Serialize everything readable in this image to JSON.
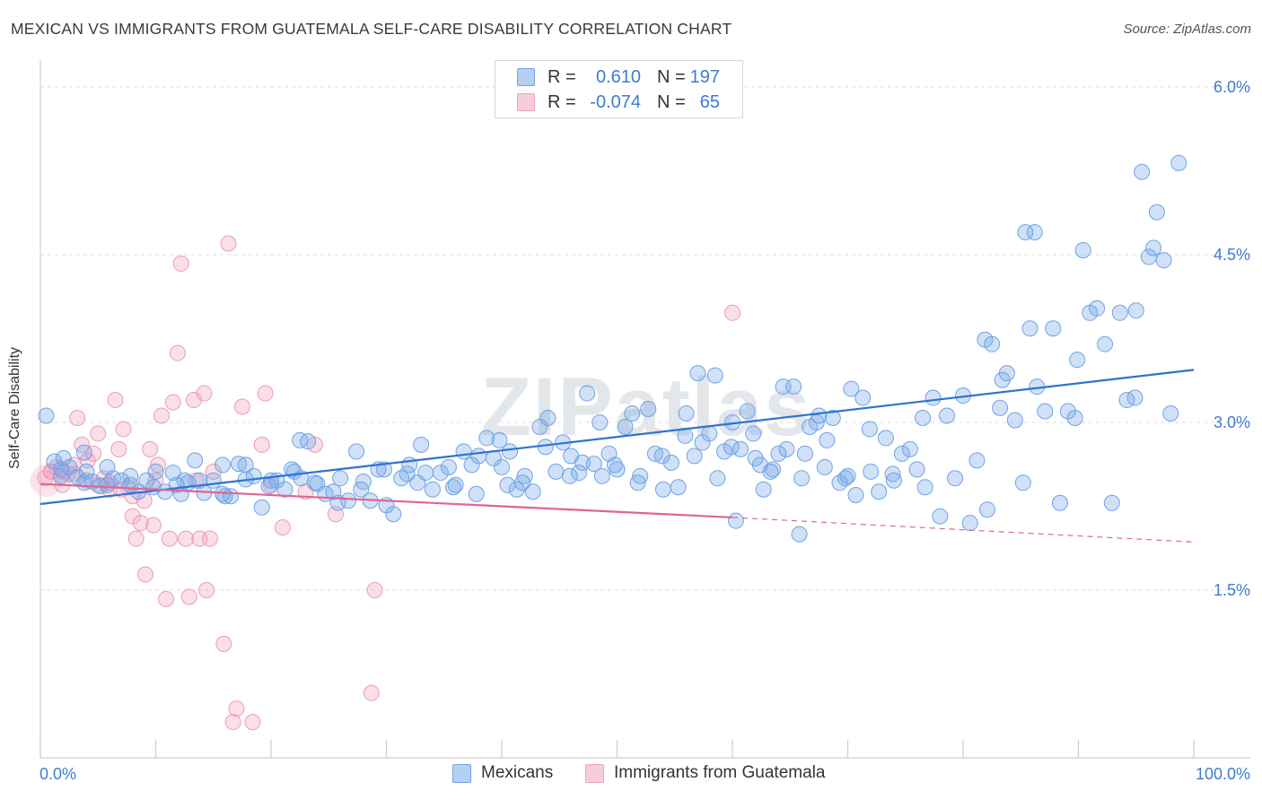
{
  "title": "MEXICAN VS IMMIGRANTS FROM GUATEMALA SELF-CARE DISABILITY CORRELATION CHART",
  "source": "Source: ZipAtlas.com",
  "watermark": "ZIPatlas",
  "legend_top": [
    {
      "r_label": "R =",
      "r_value": "0.610",
      "n_label": "N =",
      "n_value": "197"
    },
    {
      "r_label": "R =",
      "r_value": "-0.074",
      "n_label": "N =",
      "n_value": "65"
    }
  ],
  "bottom_legend": [
    "Mexicans",
    "Immigrants from Guatemala"
  ],
  "colors": {
    "blue": "#6fa3e6",
    "blue_line": "#2f73d1",
    "pink": "#f2a3bc",
    "pink_line": "#e06593",
    "tick_text": "#3d7bd4"
  },
  "chart_data": {
    "type": "scatter",
    "title": "MEXICAN VS IMMIGRANTS FROM GUATEMALA SELF-CARE DISABILITY CORRELATION CHART",
    "xlabel": "",
    "ylabel": "Self-Care Disability",
    "xlim": [
      0,
      100
    ],
    "ylim": [
      0,
      6.2
    ],
    "x_tick_labels": [
      "0.0%",
      "100.0%"
    ],
    "y_ticks": [
      1.5,
      3.0,
      4.5,
      6.0
    ],
    "y_tick_labels": [
      "1.5%",
      "3.0%",
      "4.5%",
      "6.0%"
    ],
    "grid": "horizontal dashed",
    "legend_position": "top-center",
    "series": [
      {
        "name": "Mexicans",
        "color": "#6fa3e6",
        "trend": {
          "x0": 0,
          "y0": 2.27,
          "x1": 100,
          "y1": 3.47
        },
        "points": [
          [
            0.5,
            3.06
          ],
          [
            1.2,
            2.65
          ],
          [
            1.8,
            2.58
          ],
          [
            2.5,
            2.6
          ],
          [
            3.2,
            2.51
          ],
          [
            3.8,
            2.73
          ],
          [
            4.5,
            2.47
          ],
          [
            5.2,
            2.43
          ],
          [
            5.8,
            2.6
          ],
          [
            6.3,
            2.5
          ],
          [
            7.0,
            2.48
          ],
          [
            7.8,
            2.52
          ],
          [
            8.5,
            2.38
          ],
          [
            9.2,
            2.48
          ],
          [
            10.0,
            2.56
          ],
          [
            10.8,
            2.38
          ],
          [
            11.5,
            2.55
          ],
          [
            12.2,
            2.36
          ],
          [
            12.8,
            2.46
          ],
          [
            13.4,
            2.66
          ],
          [
            14.2,
            2.37
          ],
          [
            15.0,
            2.48
          ],
          [
            15.8,
            2.36
          ],
          [
            16.5,
            2.34
          ],
          [
            17.2,
            2.63
          ],
          [
            17.8,
            2.49
          ],
          [
            18.5,
            2.52
          ],
          [
            19.2,
            2.24
          ],
          [
            19.8,
            2.43
          ],
          [
            20.5,
            2.48
          ],
          [
            21.2,
            2.4
          ],
          [
            22.0,
            2.56
          ],
          [
            22.6,
            2.5
          ],
          [
            23.2,
            2.83
          ],
          [
            24.0,
            2.45
          ],
          [
            24.7,
            2.36
          ],
          [
            25.4,
            2.38
          ],
          [
            26.0,
            2.5
          ],
          [
            26.7,
            2.3
          ],
          [
            27.4,
            2.74
          ],
          [
            28.0,
            2.47
          ],
          [
            28.6,
            2.3
          ],
          [
            29.3,
            2.58
          ],
          [
            30.0,
            2.26
          ],
          [
            30.6,
            2.18
          ],
          [
            31.3,
            2.5
          ],
          [
            32.0,
            2.62
          ],
          [
            32.7,
            2.46
          ],
          [
            33.4,
            2.55
          ],
          [
            34.0,
            2.4
          ],
          [
            34.7,
            2.55
          ],
          [
            35.4,
            2.6
          ],
          [
            36.0,
            2.44
          ],
          [
            36.7,
            2.74
          ],
          [
            37.4,
            2.62
          ],
          [
            38.0,
            2.7
          ],
          [
            38.7,
            2.86
          ],
          [
            39.3,
            2.68
          ],
          [
            40.0,
            2.6
          ],
          [
            40.7,
            2.74
          ],
          [
            41.3,
            2.4
          ],
          [
            42.0,
            2.52
          ],
          [
            42.7,
            2.38
          ],
          [
            43.3,
            2.96
          ],
          [
            44.0,
            3.04
          ],
          [
            44.7,
            2.56
          ],
          [
            45.3,
            2.82
          ],
          [
            46.0,
            2.7
          ],
          [
            46.7,
            2.55
          ],
          [
            47.4,
            3.26
          ],
          [
            48.0,
            2.63
          ],
          [
            48.7,
            2.52
          ],
          [
            49.3,
            2.72
          ],
          [
            50.0,
            2.58
          ],
          [
            50.7,
            2.96
          ],
          [
            51.3,
            3.08
          ],
          [
            52.0,
            2.52
          ],
          [
            52.7,
            3.12
          ],
          [
            53.3,
            2.72
          ],
          [
            54.0,
            2.4
          ],
          [
            54.7,
            2.64
          ],
          [
            55.3,
            2.42
          ],
          [
            56.0,
            3.08
          ],
          [
            56.7,
            2.7
          ],
          [
            57.4,
            2.82
          ],
          [
            58.0,
            2.9
          ],
          [
            58.7,
            2.5
          ],
          [
            59.3,
            2.74
          ],
          [
            60.0,
            3.0
          ],
          [
            60.7,
            2.76
          ],
          [
            61.3,
            3.1
          ],
          [
            62.0,
            2.68
          ],
          [
            62.7,
            2.4
          ],
          [
            63.3,
            2.56
          ],
          [
            64.0,
            2.72
          ],
          [
            64.7,
            2.76
          ],
          [
            65.3,
            3.32
          ],
          [
            66.0,
            2.5
          ],
          [
            66.7,
            2.96
          ],
          [
            67.3,
            3.0
          ],
          [
            68.0,
            2.6
          ],
          [
            68.7,
            3.04
          ],
          [
            69.3,
            2.46
          ],
          [
            70.0,
            2.52
          ],
          [
            70.7,
            2.35
          ],
          [
            71.3,
            3.22
          ],
          [
            72.0,
            2.56
          ],
          [
            72.7,
            2.38
          ],
          [
            73.3,
            2.86
          ],
          [
            74.0,
            2.48
          ],
          [
            74.7,
            2.72
          ],
          [
            75.4,
            2.76
          ],
          [
            76.0,
            2.58
          ],
          [
            76.7,
            2.42
          ],
          [
            77.4,
            3.22
          ],
          [
            78.0,
            2.16
          ],
          [
            78.6,
            3.06
          ],
          [
            79.3,
            2.5
          ],
          [
            80.0,
            3.24
          ],
          [
            80.6,
            2.1
          ],
          [
            81.2,
            2.66
          ],
          [
            81.9,
            3.74
          ],
          [
            82.5,
            3.7
          ],
          [
            83.2,
            3.13
          ],
          [
            83.8,
            3.44
          ],
          [
            84.5,
            3.02
          ],
          [
            85.2,
            2.46
          ],
          [
            85.8,
            3.84
          ],
          [
            86.4,
            3.32
          ],
          [
            87.1,
            3.1
          ],
          [
            87.8,
            3.84
          ],
          [
            88.4,
            2.28
          ],
          [
            89.1,
            3.1
          ],
          [
            89.7,
            3.04
          ],
          [
            90.4,
            4.54
          ],
          [
            91.0,
            3.98
          ],
          [
            91.6,
            4.02
          ],
          [
            92.3,
            3.7
          ],
          [
            92.9,
            2.28
          ],
          [
            93.6,
            3.98
          ],
          [
            94.2,
            3.2
          ],
          [
            94.9,
            3.22
          ],
          [
            95.5,
            5.24
          ],
          [
            96.1,
            4.48
          ],
          [
            96.8,
            4.88
          ],
          [
            97.4,
            4.45
          ],
          [
            98.0,
            3.08
          ],
          [
            98.7,
            5.32
          ],
          [
            86.2,
            4.7
          ],
          [
            76.5,
            3.04
          ],
          [
            67.5,
            3.06
          ],
          [
            58.5,
            3.42
          ],
          [
            48.5,
            3.0
          ],
          [
            40.5,
            2.44
          ],
          [
            33.0,
            2.8
          ],
          [
            22.5,
            2.84
          ],
          [
            20.0,
            2.48
          ],
          [
            16.0,
            2.34
          ],
          [
            12.5,
            2.48
          ],
          [
            4.0,
            2.56
          ],
          [
            2.0,
            2.68
          ],
          [
            63.5,
            2.58
          ],
          [
            96.5,
            4.56
          ],
          [
            95.0,
            4.0
          ],
          [
            85.4,
            4.7
          ],
          [
            60.3,
            2.12
          ],
          [
            65.8,
            2.0
          ],
          [
            70.3,
            3.3
          ],
          [
            57.0,
            3.44
          ],
          [
            47.0,
            2.64
          ],
          [
            89.9,
            3.56
          ],
          [
            83.4,
            3.38
          ],
          [
            82.1,
            2.22
          ],
          [
            73.9,
            2.54
          ],
          [
            71.9,
            2.94
          ],
          [
            69.8,
            2.5
          ],
          [
            68.2,
            2.84
          ],
          [
            66.3,
            2.72
          ],
          [
            64.4,
            3.32
          ],
          [
            62.4,
            2.62
          ],
          [
            61.8,
            2.9
          ],
          [
            59.9,
            2.78
          ],
          [
            55.9,
            2.88
          ],
          [
            53.9,
            2.7
          ],
          [
            51.8,
            2.46
          ],
          [
            49.8,
            2.62
          ],
          [
            45.9,
            2.52
          ],
          [
            43.8,
            2.78
          ],
          [
            41.8,
            2.46
          ],
          [
            39.8,
            2.84
          ],
          [
            37.8,
            2.36
          ],
          [
            35.8,
            2.42
          ],
          [
            31.8,
            2.54
          ],
          [
            29.8,
            2.58
          ],
          [
            27.8,
            2.4
          ],
          [
            25.8,
            2.28
          ],
          [
            23.8,
            2.46
          ],
          [
            21.8,
            2.58
          ],
          [
            17.8,
            2.62
          ],
          [
            15.8,
            2.62
          ],
          [
            13.8,
            2.48
          ],
          [
            11.8,
            2.44
          ],
          [
            9.8,
            2.42
          ],
          [
            7.8,
            2.44
          ],
          [
            5.8,
            2.44
          ],
          [
            3.8,
            2.46
          ],
          [
            1.8,
            2.52
          ]
        ]
      },
      {
        "name": "Immigrants from Guatemala",
        "color": "#f2a3bc",
        "trend": {
          "x0": 0,
          "y0": 2.45,
          "x1": 60,
          "y1": 2.15,
          "dash_to_x": 100,
          "dash_to_y": 1.93
        },
        "points": [
          [
            0.4,
            2.5
          ],
          [
            0.9,
            2.56
          ],
          [
            1.4,
            2.6
          ],
          [
            1.9,
            2.44
          ],
          [
            2.4,
            2.54
          ],
          [
            2.9,
            2.62
          ],
          [
            3.2,
            3.04
          ],
          [
            3.6,
            2.8
          ],
          [
            4.1,
            2.66
          ],
          [
            4.6,
            2.72
          ],
          [
            5.0,
            2.9
          ],
          [
            5.5,
            2.5
          ],
          [
            6.0,
            2.4
          ],
          [
            6.5,
            3.2
          ],
          [
            6.8,
            2.76
          ],
          [
            7.2,
            2.94
          ],
          [
            7.6,
            2.42
          ],
          [
            8.0,
            2.16
          ],
          [
            8.3,
            1.96
          ],
          [
            8.7,
            2.1
          ],
          [
            9.1,
            1.64
          ],
          [
            9.5,
            2.76
          ],
          [
            9.8,
            2.08
          ],
          [
            10.2,
            2.62
          ],
          [
            10.5,
            3.06
          ],
          [
            10.9,
            1.42
          ],
          [
            11.2,
            1.96
          ],
          [
            11.5,
            3.18
          ],
          [
            11.9,
            3.62
          ],
          [
            12.2,
            4.42
          ],
          [
            12.6,
            1.96
          ],
          [
            12.9,
            1.44
          ],
          [
            13.3,
            3.2
          ],
          [
            13.5,
            2.48
          ],
          [
            13.8,
            1.96
          ],
          [
            14.2,
            3.26
          ],
          [
            14.4,
            1.5
          ],
          [
            14.7,
            1.96
          ],
          [
            15.0,
            2.56
          ],
          [
            15.9,
            1.02
          ],
          [
            16.3,
            4.6
          ],
          [
            16.7,
            0.32
          ],
          [
            17.0,
            0.44
          ],
          [
            17.5,
            3.14
          ],
          [
            18.4,
            0.32
          ],
          [
            19.2,
            2.8
          ],
          [
            19.5,
            3.26
          ],
          [
            20.0,
            2.44
          ],
          [
            21.0,
            2.06
          ],
          [
            23.0,
            2.38
          ],
          [
            23.8,
            2.8
          ],
          [
            25.6,
            2.18
          ],
          [
            28.7,
            0.58
          ],
          [
            29.0,
            1.5
          ],
          [
            60.0,
            3.98
          ],
          [
            1.0,
            2.56
          ],
          [
            2.0,
            2.56
          ],
          [
            3.0,
            2.54
          ],
          [
            4.0,
            2.48
          ],
          [
            5.0,
            2.44
          ],
          [
            6.0,
            2.46
          ],
          [
            7.0,
            2.4
          ],
          [
            8.0,
            2.34
          ],
          [
            9.0,
            2.3
          ],
          [
            10.0,
            2.48
          ]
        ]
      }
    ]
  }
}
